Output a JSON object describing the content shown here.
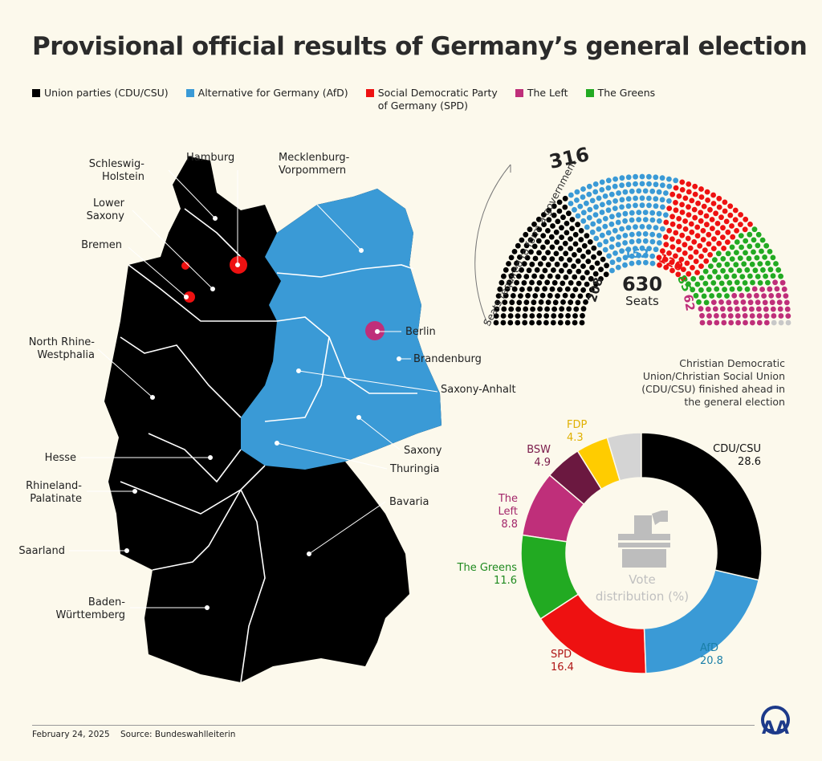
{
  "title": "Provisional official results of Germany’s general election",
  "legend": [
    {
      "label": "Union parties (CDU/CSU)",
      "color": "#000000"
    },
    {
      "label": "Alternative for Germany (AfD)",
      "color": "#3a9ad6"
    },
    {
      "label": "Social Democratic Party\nof Germany (SPD)",
      "color": "#ee1111"
    },
    {
      "label": "The Left",
      "color": "#bf2f7a"
    },
    {
      "label": "The Greens",
      "color": "#22aa22"
    }
  ],
  "map": {
    "states": [
      "Schleswig-\nHolstein",
      "Hamburg",
      "Mecklenburg-\nVorpommern",
      "Lower\nSaxony",
      "Bremen",
      "North Rhine-\nWestphalia",
      "Berlin",
      "Brandenburg",
      "Saxony-Anhalt",
      "Saxony",
      "Thuringia",
      "Hesse",
      "Rhineland-\nPalatinate",
      "Saarland",
      "Bavaria",
      "Baden-\nWürttemberg"
    ]
  },
  "note": "Christian Democratic Union/Christian Social Union (CDU/CSU) finished ahead in the general election",
  "chart_data": [
    {
      "type": "parliament",
      "total_label": "630",
      "total_sub": "Seats",
      "majority_label": "Seats required to form a government",
      "majority": "316",
      "series": [
        {
          "name": "CDU/CSU",
          "seats": 208,
          "color": "#000000"
        },
        {
          "name": "AfD",
          "seats": 152,
          "color": "#3a9ad6"
        },
        {
          "name": "SPD",
          "seats": 120,
          "color": "#ee1111"
        },
        {
          "name": "The Greens",
          "seats": 85,
          "color": "#22aa22"
        },
        {
          "name": "The Left",
          "seats": 62,
          "color": "#bf2f7a"
        },
        {
          "seats": 3,
          "color": "#c8c8c8"
        }
      ],
      "labels": [
        "208",
        "152",
        "120",
        "85",
        "62"
      ]
    },
    {
      "type": "pie",
      "center_label": "Vote\ndistribution (%)",
      "slices": [
        {
          "name": "CDU/CSU",
          "value": 28.6,
          "label": "28.6",
          "color": "#000000",
          "text_color": "#111111"
        },
        {
          "name": "AfD",
          "value": 20.8,
          "label": "20.8",
          "color": "#3a9ad6",
          "text_color": "#1a7fa8"
        },
        {
          "name": "SPD",
          "value": 16.4,
          "label": "16.4",
          "color": "#ee1111",
          "text_color": "#b01515"
        },
        {
          "name": "The Greens",
          "value": 11.6,
          "label": "11.6",
          "color": "#22aa22",
          "text_color": "#1f8a1f"
        },
        {
          "name": "The\nLeft",
          "value": 8.8,
          "label": "8.8",
          "color": "#bf2f7a",
          "text_color": "#a3266a"
        },
        {
          "name": "BSW",
          "value": 4.9,
          "label": "4.9",
          "color": "#6b1840",
          "text_color": "#7a1a4a"
        },
        {
          "name": "FDP",
          "value": 4.3,
          "label": "4.3",
          "color": "#ffcc00",
          "text_color": "#e0b000"
        },
        {
          "value": 4.6,
          "color": "#d4d4d4"
        }
      ]
    }
  ],
  "footer": {
    "date": "February 24, 2025",
    "source": "Source: Bundeswahlleiterin"
  },
  "logo": "AA"
}
